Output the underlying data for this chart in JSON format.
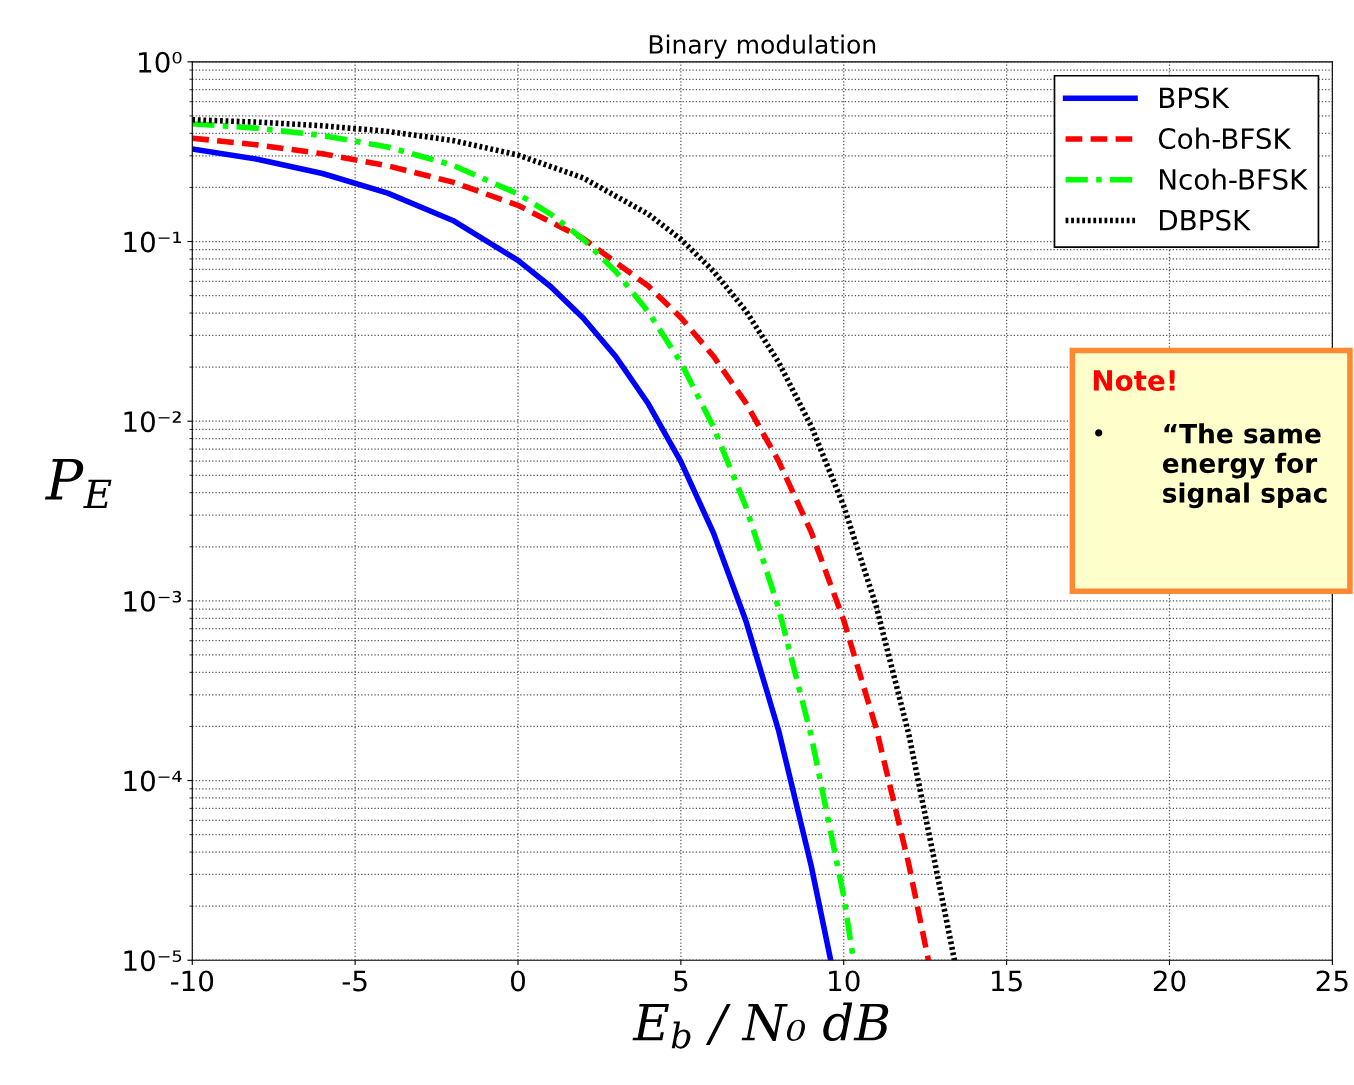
{
  "chart_data": {
    "type": "line",
    "title": "Binary modulation",
    "xlabel": "E$_{b}$ / N₀ dB",
    "ylabel": "P$_{E}$",
    "log": "y",
    "xlim": [
      -10,
      25
    ],
    "xticks": [
      -10,
      -5,
      0,
      5,
      10,
      15,
      20,
      25
    ],
    "ylim": [
      1e-05,
      1
    ],
    "yticks": [
      {
        "value": 1,
        "label": "10⁰"
      },
      {
        "value": 0.1,
        "label": "10⁻¹"
      },
      {
        "value": 0.01,
        "label": "10⁻²"
      },
      {
        "value": 0.001,
        "label": "10⁻³"
      },
      {
        "value": 0.0001,
        "label": "10⁻⁴"
      },
      {
        "value": 1e-05,
        "label": "10⁻⁵"
      }
    ],
    "grid": true,
    "legend": "top right",
    "marker": "none",
    "series": [
      {
        "name": "BPSK",
        "color": "#0000ff",
        "line_style": "solid",
        "x": [
          -10,
          -8,
          -6,
          -4,
          -2,
          0,
          1,
          2,
          3,
          4,
          5,
          6,
          7,
          8,
          9,
          9.6
        ],
        "values": [
          0.327,
          0.287,
          0.239,
          0.186,
          0.131,
          0.0786,
          0.0562,
          0.0375,
          0.0229,
          0.0125,
          0.00595,
          0.00239,
          0.00077,
          0.00019,
          3.36e-05,
          1e-05
        ]
      },
      {
        "name": "Coh-BFSK",
        "color": "#ff0000",
        "line_style": "dashed",
        "x": [
          -10,
          -8,
          -6,
          -4,
          -2,
          0,
          2,
          4,
          5,
          6,
          7,
          8,
          9,
          10,
          11,
          12,
          12.6
        ],
        "values": [
          0.376,
          0.345,
          0.308,
          0.264,
          0.214,
          0.159,
          0.104,
          0.0565,
          0.0377,
          0.023,
          0.0126,
          0.006,
          0.00242,
          0.00078,
          0.000194,
          3.4e-05,
          1e-05
        ]
      },
      {
        "name": "Ncoh-BFSK",
        "color": "#00ff00",
        "line_style": "dashdot",
        "x": [
          -10,
          -8,
          -6,
          -4,
          -2,
          0,
          1,
          2,
          3,
          4,
          5,
          6,
          7,
          8,
          9,
          10,
          10.3
        ],
        "values": [
          0.452,
          0.427,
          0.389,
          0.336,
          0.266,
          0.184,
          0.142,
          0.103,
          0.068,
          0.0406,
          0.0212,
          0.0093,
          0.00333,
          0.00091,
          0.000178,
          2.27e-05,
          1e-05
        ]
      },
      {
        "name": "DBPSK",
        "color": "#000000",
        "line_style": "dotted",
        "x": [
          -10,
          -8,
          -6,
          -4,
          -2,
          0,
          2,
          4,
          5,
          6,
          7,
          8,
          9,
          10,
          11,
          12,
          13,
          13.4
        ],
        "values": [
          0.476,
          0.462,
          0.441,
          0.41,
          0.365,
          0.303,
          0.226,
          0.142,
          0.103,
          0.0684,
          0.041,
          0.0213,
          0.0094,
          0.00337,
          0.00093,
          0.00018,
          2.3e-05,
          1e-05
        ]
      }
    ],
    "annotations": [
      "Note!",
      "•",
      "“The same energy for signal spac"
    ]
  }
}
